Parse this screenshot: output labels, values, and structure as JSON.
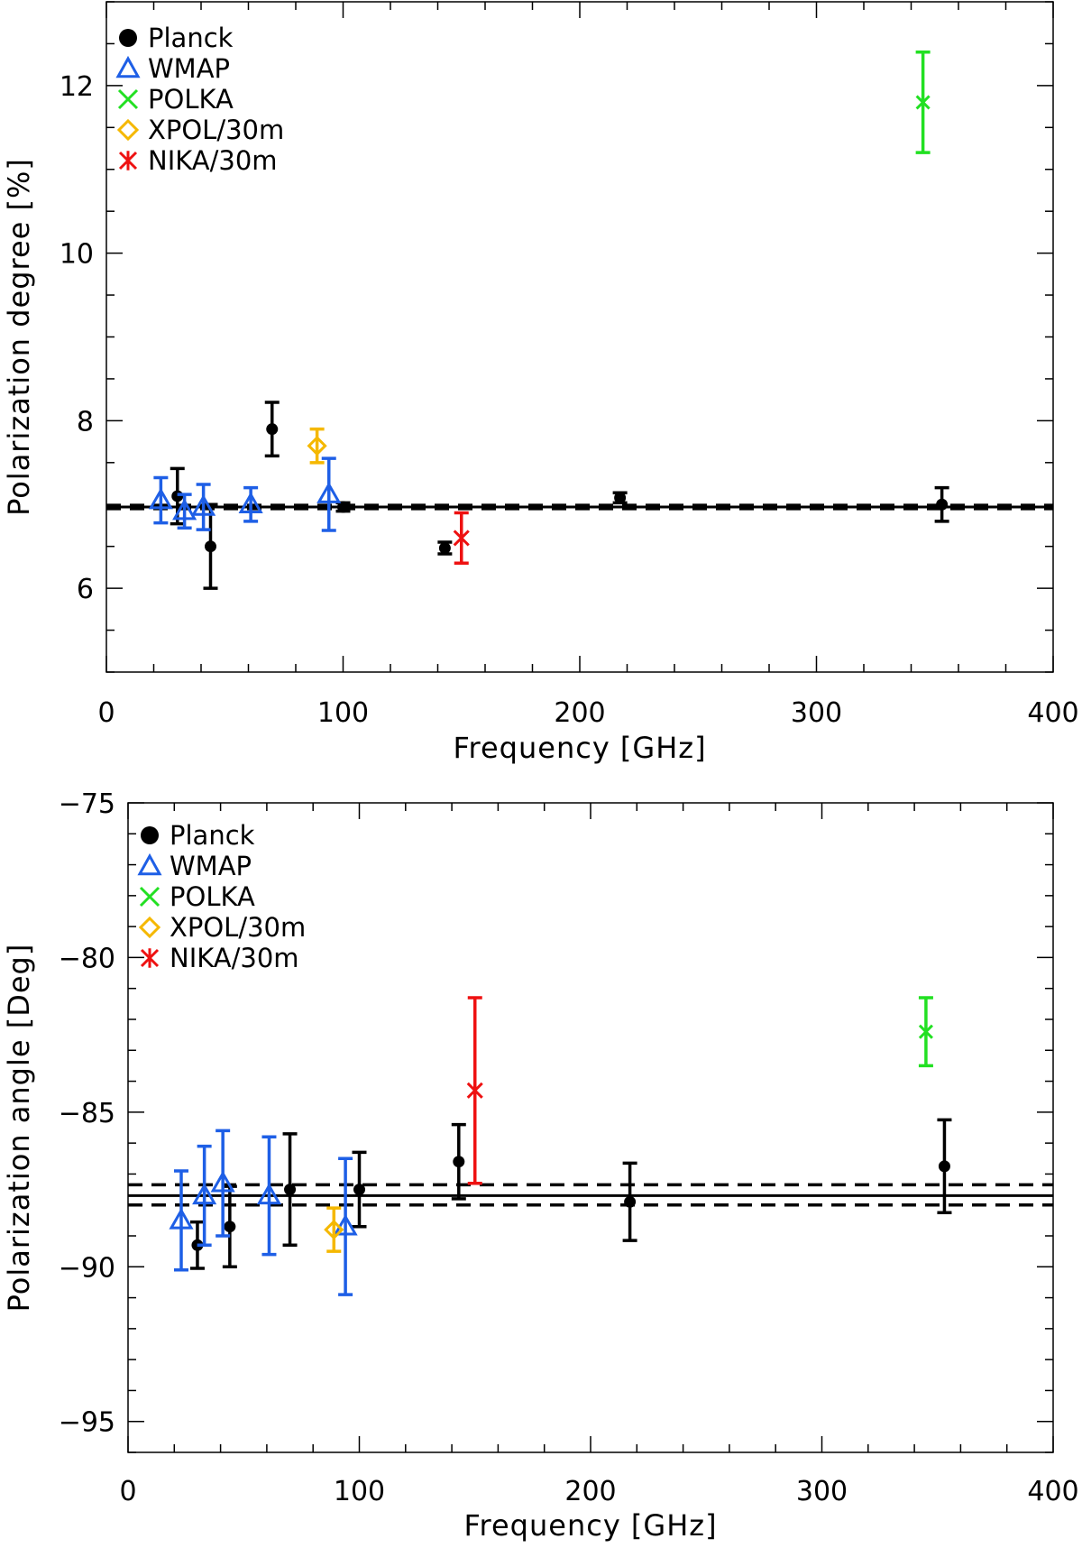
{
  "chart_data": [
    {
      "type": "scatter",
      "id": "degree",
      "title": "",
      "xlabel": "Frequency [GHz]",
      "ylabel": "Polarization degree [%]",
      "xlim": [
        0,
        400
      ],
      "ylim": [
        5,
        13
      ],
      "xticks": [
        0,
        100,
        200,
        300,
        400
      ],
      "yticks": [
        6,
        8,
        10,
        12
      ],
      "grid": false,
      "legend_position": "top-left",
      "series": [
        {
          "name": "Planck",
          "marker": "circle",
          "color": "#000000",
          "points": [
            {
              "x": 30,
              "y": 7.1,
              "err": 0.33
            },
            {
              "x": 44,
              "y": 6.5,
              "err": 0.5
            },
            {
              "x": 70,
              "y": 7.9,
              "err": 0.32
            },
            {
              "x": 100,
              "y": 6.97,
              "err": 0.05
            },
            {
              "x": 143,
              "y": 6.48,
              "err": 0.07
            },
            {
              "x": 217,
              "y": 7.08,
              "err": 0.06
            },
            {
              "x": 353,
              "y": 7.0,
              "err": 0.2
            }
          ]
        },
        {
          "name": "WMAP",
          "marker": "triangle",
          "color": "#1e5fe6",
          "points": [
            {
              "x": 23,
              "y": 7.05,
              "err": 0.27
            },
            {
              "x": 33,
              "y": 6.92,
              "err": 0.2
            },
            {
              "x": 41,
              "y": 6.97,
              "err": 0.27
            },
            {
              "x": 61,
              "y": 7.0,
              "err": 0.2
            },
            {
              "x": 94,
              "y": 7.12,
              "err": 0.43
            }
          ]
        },
        {
          "name": "POLKA",
          "marker": "x",
          "color": "#22e022",
          "points": [
            {
              "x": 345,
              "y": 11.8,
              "err": 0.6
            }
          ]
        },
        {
          "name": "XPOL/30m",
          "marker": "diamond",
          "color": "#f5b800",
          "points": [
            {
              "x": 89,
              "y": 7.7,
              "err": 0.2
            }
          ]
        },
        {
          "name": "NIKA/30m",
          "marker": "asterisk",
          "color": "#ee1111",
          "points": [
            {
              "x": 150,
              "y": 6.6,
              "err": 0.3
            }
          ]
        }
      ],
      "reference_lines": {
        "mean": 6.97,
        "lower": 6.95,
        "upper": 6.99
      }
    },
    {
      "type": "scatter",
      "id": "angle",
      "title": "",
      "xlabel": "Frequency [GHz]",
      "ylabel": "Polarization angle [Deg]",
      "xlim": [
        0,
        400
      ],
      "ylim": [
        -96,
        -75
      ],
      "xticks": [
        0,
        100,
        200,
        300,
        400
      ],
      "yticks": [
        -95,
        -90,
        -85,
        -80,
        -75
      ],
      "grid": false,
      "legend_position": "top-left",
      "series": [
        {
          "name": "Planck",
          "marker": "circle",
          "color": "#000000",
          "points": [
            {
              "x": 30,
              "y": -89.3,
              "err": 0.75
            },
            {
              "x": 44,
              "y": -88.7,
              "err": 1.3
            },
            {
              "x": 70,
              "y": -87.5,
              "err": 1.8
            },
            {
              "x": 100,
              "y": -87.5,
              "err": 1.2
            },
            {
              "x": 143,
              "y": -86.6,
              "err": 1.2
            },
            {
              "x": 217,
              "y": -87.9,
              "err": 1.25
            },
            {
              "x": 353,
              "y": -86.75,
              "err": 1.5
            }
          ]
        },
        {
          "name": "WMAP",
          "marker": "triangle",
          "color": "#1e5fe6",
          "points": [
            {
              "x": 23,
              "y": -88.5,
              "err": 1.6
            },
            {
              "x": 33,
              "y": -87.7,
              "err": 1.6
            },
            {
              "x": 41,
              "y": -87.3,
              "err": 1.7
            },
            {
              "x": 61,
              "y": -87.7,
              "err": 1.9
            },
            {
              "x": 94,
              "y": -88.7,
              "err": 2.2
            }
          ]
        },
        {
          "name": "POLKA",
          "marker": "x",
          "color": "#22e022",
          "points": [
            {
              "x": 345,
              "y": -82.4,
              "err": 1.1
            }
          ]
        },
        {
          "name": "XPOL/30m",
          "marker": "diamond",
          "color": "#f5b800",
          "points": [
            {
              "x": 89,
              "y": -88.8,
              "err": 0.7
            }
          ]
        },
        {
          "name": "NIKA/30m",
          "marker": "asterisk",
          "color": "#ee1111",
          "points": [
            {
              "x": 150,
              "y": -84.3,
              "err": 3.0
            }
          ]
        }
      ],
      "reference_lines": {
        "mean": -87.7,
        "lower": -88.0,
        "upper": -87.35
      }
    }
  ]
}
